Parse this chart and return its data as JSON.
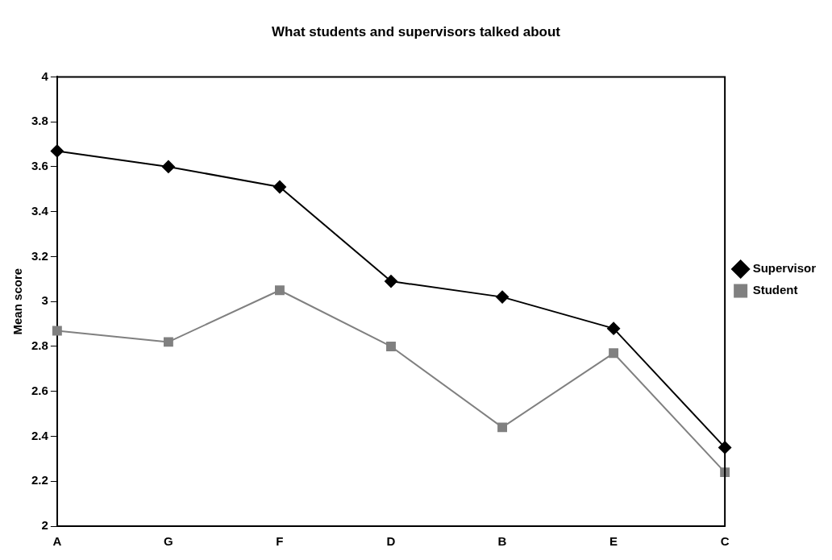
{
  "chart_data": {
    "type": "line",
    "title": "What students and supervisors talked about",
    "ylabel": "Mean score",
    "categories": [
      "A",
      "G",
      "F",
      "D",
      "B",
      "E",
      "C"
    ],
    "series": [
      {
        "name": "Supervisor",
        "color": "#000000",
        "marker": "diamond",
        "values": [
          3.67,
          3.6,
          3.51,
          3.09,
          3.02,
          2.88,
          2.35
        ]
      },
      {
        "name": "Student",
        "color": "#808080",
        "marker": "square",
        "values": [
          2.87,
          2.82,
          3.05,
          2.8,
          2.44,
          2.77,
          2.24
        ]
      }
    ],
    "ylim": [
      2,
      4
    ],
    "yticks": [
      2,
      2.2,
      2.4,
      2.6,
      2.8,
      3,
      3.2,
      3.4,
      3.6,
      3.8,
      4
    ],
    "grid": false,
    "legend": "right"
  }
}
